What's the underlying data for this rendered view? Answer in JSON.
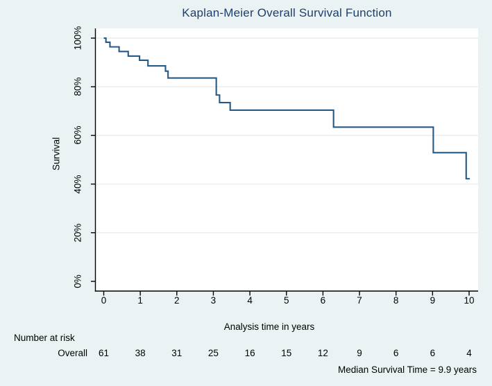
{
  "title": "Kaplan-Meier Overall Survival Function",
  "chart_data": {
    "type": "line",
    "subtype": "kaplan-meier-step-function",
    "title": "Kaplan-Meier Overall Survival Function",
    "xlabel": "Analysis time in years",
    "ylabel": "Survival",
    "xlim": [
      0,
      10
    ],
    "ylim": [
      0,
      100
    ],
    "x_ticks": [
      "0",
      "1",
      "2",
      "3",
      "4",
      "5",
      "6",
      "7",
      "8",
      "9",
      "10"
    ],
    "y_ticks": [
      {
        "value": 0,
        "label": "0%"
      },
      {
        "value": 20,
        "label": "20%"
      },
      {
        "value": 40,
        "label": "40%"
      },
      {
        "value": 60,
        "label": "60%"
      },
      {
        "value": 80,
        "label": "80%"
      },
      {
        "value": 100,
        "label": "100%"
      }
    ],
    "grid": {
      "horizontal_at": [
        20,
        40,
        60,
        80,
        100
      ],
      "vertical": false
    },
    "legend": "none",
    "series": [
      {
        "name": "Overall",
        "steps": [
          [
            0.0,
            100.0
          ],
          [
            0.06,
            98.3
          ],
          [
            0.17,
            96.4
          ],
          [
            0.42,
            94.5
          ],
          [
            0.67,
            92.6
          ],
          [
            0.98,
            90.9
          ],
          [
            1.21,
            88.6
          ],
          [
            1.69,
            86.4
          ],
          [
            1.76,
            83.6
          ],
          [
            3.08,
            76.6
          ],
          [
            3.17,
            73.5
          ],
          [
            3.46,
            70.4
          ],
          [
            6.29,
            63.4
          ],
          [
            9.02,
            52.9
          ],
          [
            9.92,
            42.2
          ]
        ],
        "end_time": 10.02
      }
    ],
    "annotation": "Median Survival Time = 9.9 years",
    "median_survival_years": 9.9
  },
  "risk_table": {
    "header": "Number at risk",
    "times": [
      0,
      1,
      2,
      3,
      4,
      5,
      6,
      7,
      8,
      9,
      10
    ],
    "rows": [
      {
        "label": "Overall",
        "counts": [
          "61",
          "38",
          "31",
          "25",
          "16",
          "15",
          "12",
          "9",
          "6",
          "6",
          "4"
        ]
      }
    ]
  },
  "footer_note": "Median Survival Time = 9.9 years",
  "colors": {
    "background": "#eaf2f3",
    "plot_background": "#ffffff",
    "gridline": "#e4eef0",
    "axis": "#000000",
    "curve": "#255a87",
    "title_text": "#1e3f6b",
    "text": "#000000"
  }
}
